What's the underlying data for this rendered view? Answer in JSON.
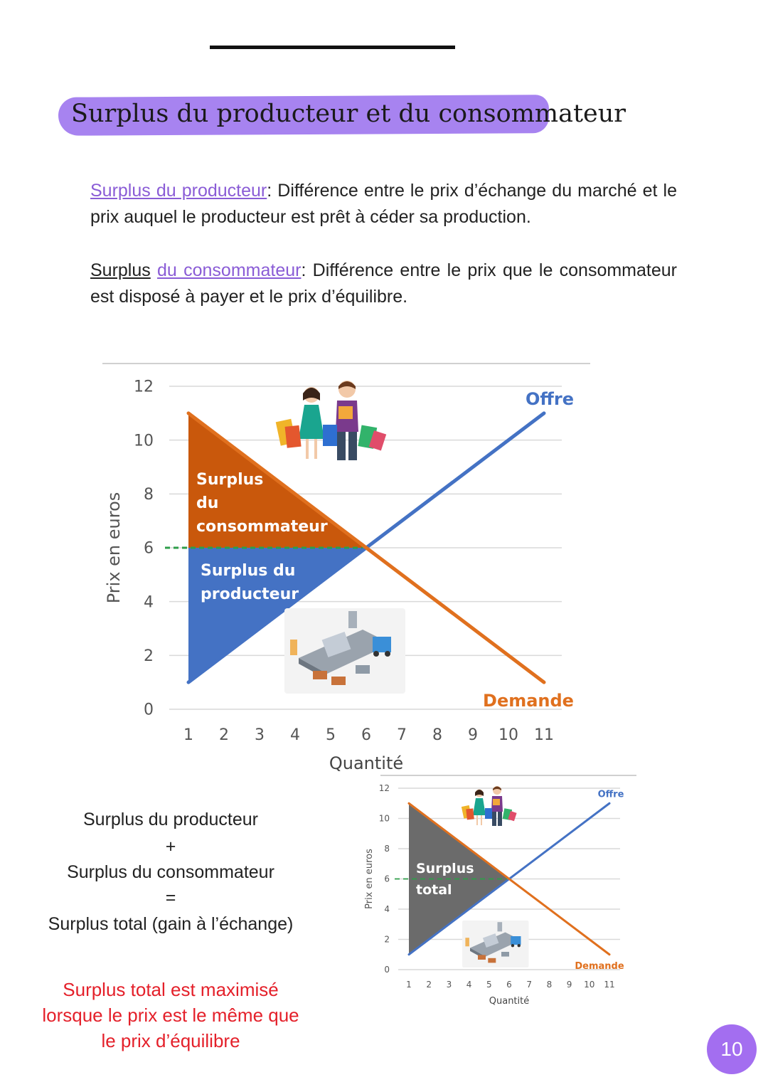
{
  "page": {
    "title": "Surplus du producteur et du consommateur",
    "number": "10"
  },
  "definitions": {
    "producer_term": "Surplus du producteur",
    "producer_text": ": Différence entre le prix d’échange du marché et le prix auquel le producteur est prêt à céder sa production.",
    "consumer_term_1": "Surplus",
    "consumer_term_2": "du consommateur",
    "consumer_text": ": Différence entre le prix que le consommateur est disposé à payer et le prix d’équilibre."
  },
  "equation": {
    "line1": "Surplus du producteur",
    "plus": "+",
    "line2": "Surplus du consommateur",
    "equals": "=",
    "line3": "Surplus total (gain à l’échange)"
  },
  "conclusion": {
    "line1": "Surplus total est maximisé",
    "line2": "lorsque le prix est le même que",
    "line3": "le prix d’équilibre"
  },
  "colors": {
    "accent_purple": "#a783f0",
    "offre_blue": "#4472c4",
    "demande_orange": "#e0701e",
    "consumer_area": "#c9580c",
    "producer_area": "#4472c4",
    "total_area": "#6b6b6b",
    "equilibrium_dash": "#2e9e4a",
    "conclusion_red": "#e4202a"
  },
  "chart_data": [
    {
      "type": "line",
      "xlabel": "Quantité",
      "ylabel": "Prix en euros",
      "x_ticks": [
        1,
        2,
        3,
        4,
        5,
        6,
        7,
        8,
        9,
        10,
        11
      ],
      "y_ticks": [
        0,
        2,
        4,
        6,
        8,
        10,
        12
      ],
      "xlim": [
        1,
        11
      ],
      "ylim": [
        0,
        12
      ],
      "series": [
        {
          "name": "Offre",
          "color": "#4472c4",
          "points": [
            [
              1,
              1
            ],
            [
              11,
              11
            ]
          ]
        },
        {
          "name": "Demande",
          "color": "#e0701e",
          "points": [
            [
              1,
              11
            ],
            [
              11,
              1
            ]
          ]
        }
      ],
      "equilibrium": {
        "x": 6,
        "y": 6
      },
      "areas": [
        {
          "label": [
            "Surplus",
            "du",
            "consommateur"
          ],
          "color": "#c9580c",
          "points": [
            [
              1,
              11
            ],
            [
              1,
              6
            ],
            [
              6,
              6
            ]
          ]
        },
        {
          "label": [
            "Surplus du",
            "producteur"
          ],
          "color": "#4472c4",
          "points": [
            [
              1,
              6
            ],
            [
              1,
              1
            ],
            [
              6,
              6
            ]
          ]
        }
      ]
    },
    {
      "type": "line",
      "xlabel": "Quantité",
      "ylabel": "Prix en euros",
      "x_ticks": [
        1,
        2,
        3,
        4,
        5,
        6,
        7,
        8,
        9,
        10,
        11
      ],
      "y_ticks": [
        0,
        2,
        4,
        6,
        8,
        10,
        12
      ],
      "xlim": [
        1,
        11
      ],
      "ylim": [
        0,
        12
      ],
      "series": [
        {
          "name": "Offre",
          "color": "#4472c4",
          "points": [
            [
              1,
              1
            ],
            [
              11,
              11
            ]
          ]
        },
        {
          "name": "Demande",
          "color": "#e0701e",
          "points": [
            [
              1,
              11
            ],
            [
              11,
              1
            ]
          ]
        }
      ],
      "equilibrium": {
        "x": 6,
        "y": 6
      },
      "areas": [
        {
          "label": [
            "Surplus",
            "total"
          ],
          "color": "#6b6b6b",
          "points": [
            [
              1,
              11
            ],
            [
              1,
              1
            ],
            [
              6,
              6
            ]
          ]
        }
      ]
    }
  ]
}
